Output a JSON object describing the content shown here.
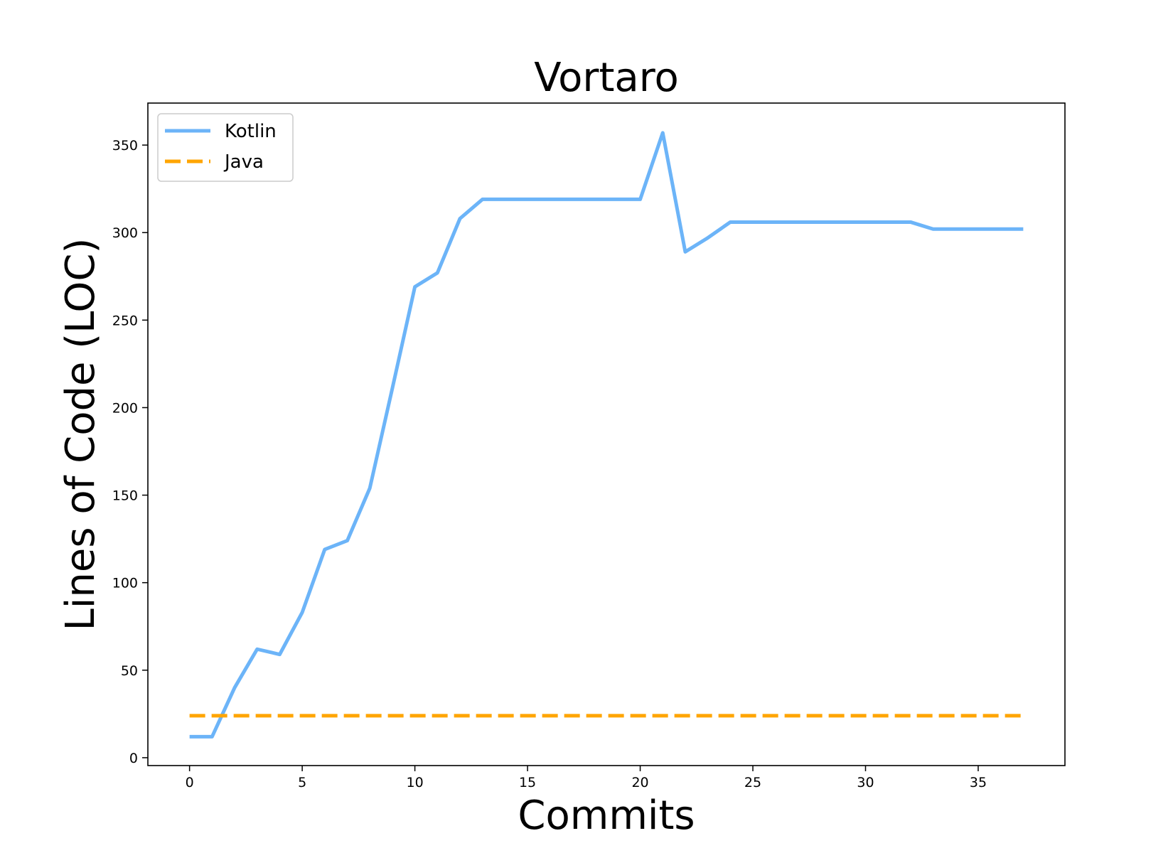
{
  "chart_data": {
    "type": "line",
    "title": "Vortaro",
    "xlabel": "Commits",
    "ylabel": "Lines of Code (LOC)",
    "xlim": [
      -1.85,
      38.85
    ],
    "ylim": [
      -4.5,
      374
    ],
    "xticks": [
      0,
      5,
      10,
      15,
      20,
      25,
      30,
      35
    ],
    "yticks": [
      0,
      50,
      100,
      150,
      200,
      250,
      300,
      350
    ],
    "grid": false,
    "legend_position": "top-left",
    "series": [
      {
        "name": "Kotlin",
        "color": "#6cb4f8",
        "style": "solid",
        "x": [
          0,
          1,
          2,
          3,
          4,
          5,
          6,
          7,
          8,
          9,
          10,
          11,
          12,
          13,
          14,
          15,
          16,
          17,
          18,
          19,
          20,
          21,
          22,
          23,
          24,
          25,
          26,
          27,
          28,
          29,
          30,
          31,
          32,
          33,
          34,
          35,
          36,
          37
        ],
        "y": [
          12,
          12,
          40,
          62,
          59,
          83,
          119,
          124,
          154,
          211,
          269,
          277,
          308,
          319,
          319,
          319,
          319,
          319,
          319,
          319,
          319,
          357,
          289,
          297,
          306,
          306,
          306,
          306,
          306,
          306,
          306,
          306,
          306,
          302,
          302,
          302,
          302,
          302
        ]
      },
      {
        "name": "Java",
        "color": "#ffa500",
        "style": "dashed",
        "x": [
          0,
          37
        ],
        "y": [
          24,
          24
        ]
      }
    ]
  }
}
